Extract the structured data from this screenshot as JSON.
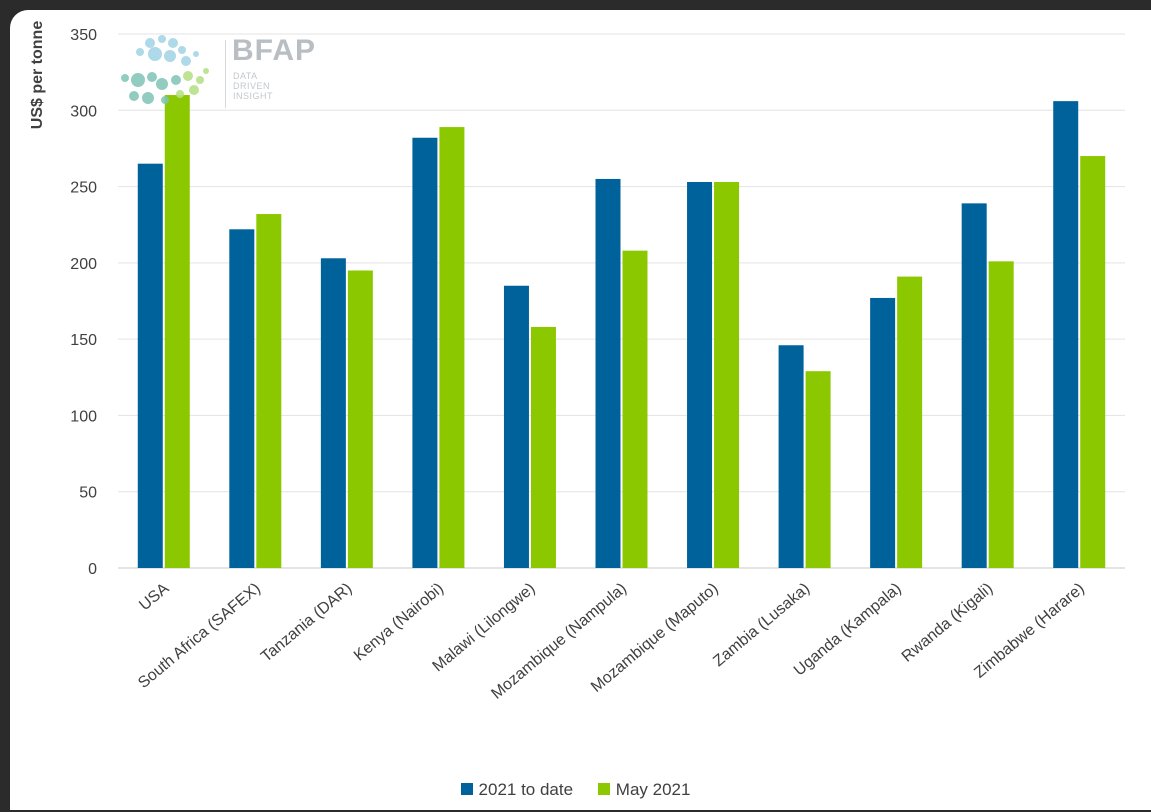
{
  "colors": {
    "series_1": "#00629b",
    "series_2": "#8cc800",
    "grid": "#e3e3e3",
    "axis_text": "#404040"
  },
  "logo": {
    "brand": "BFAP",
    "tagline": [
      "DATA",
      "DRIVEN",
      "INSIGHT"
    ]
  },
  "chart_data": {
    "type": "bar",
    "title": "",
    "xlabel": "",
    "ylabel": "US$ per tonne",
    "ylim": [
      0,
      350
    ],
    "yticks": [
      0,
      50,
      100,
      150,
      200,
      250,
      300,
      350
    ],
    "grid": true,
    "legend_position": "bottom",
    "categories": [
      "USA",
      "South Africa (SAFEX)",
      "Tanzania (DAR)",
      "Kenya (Nairobi)",
      "Malawi (Lilongwe)",
      "Mozambique (Nampula)",
      "Mozambique (Maputo)",
      "Zambia (Lusaka)",
      "Uganda (Kampala)",
      "Rwanda (Kigali)",
      "Zimbabwe (Harare)"
    ],
    "series": [
      {
        "name": "2021 to date",
        "values": [
          265,
          222,
          203,
          282,
          185,
          255,
          253,
          146,
          177,
          239,
          306
        ]
      },
      {
        "name": "May 2021",
        "values": [
          310,
          232,
          195,
          289,
          158,
          208,
          253,
          129,
          191,
          201,
          270
        ]
      }
    ]
  }
}
